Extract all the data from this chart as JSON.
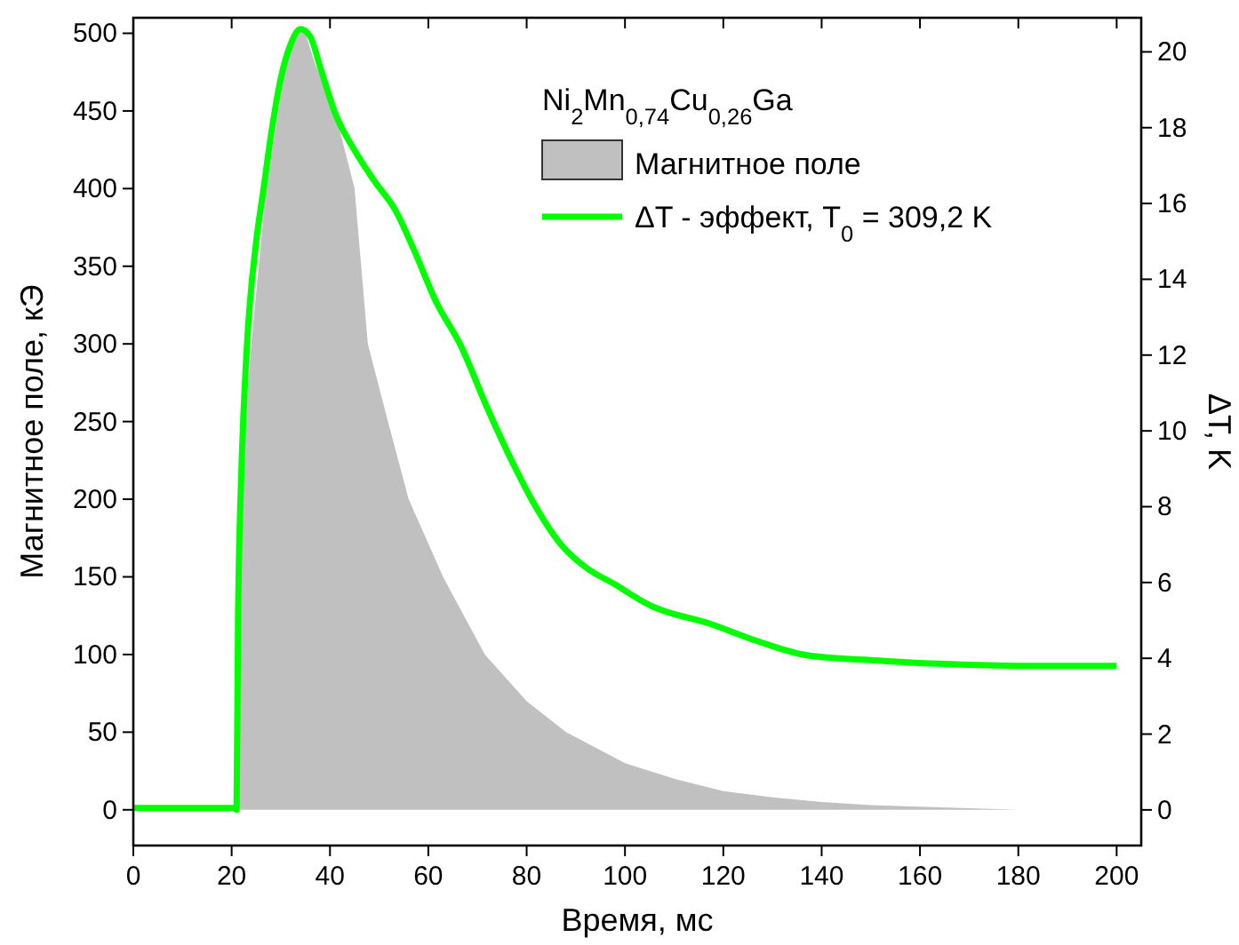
{
  "chart_data": {
    "type": "line",
    "xlabel": "Время, мс",
    "ylabel": "Магнитное поле, кЭ",
    "y2label": "ΔT, K",
    "legend_title": "Ni$_{2}$Mn$_{0,74}$Cu$_{0,26}$Ga",
    "legend": "top right",
    "grid": false,
    "xlim": [
      0,
      205
    ],
    "xticks": [
      0,
      20,
      40,
      60,
      80,
      100,
      120,
      140,
      160,
      180,
      200
    ],
    "ylim": [
      -23,
      510
    ],
    "yticks": [
      0,
      50,
      100,
      150,
      200,
      250,
      300,
      350,
      400,
      450,
      500
    ],
    "y2lim": [
      -0.94,
      20.9
    ],
    "y2ticks": [
      0,
      2,
      4,
      6,
      8,
      10,
      12,
      14,
      16,
      18,
      20
    ],
    "series": [
      {
        "name": "Магнитное поле",
        "type": "area",
        "color": "#c0c0c0",
        "x": [
          21,
          21.5,
          22,
          24,
          27,
          31,
          33,
          34.5,
          37,
          41,
          45,
          47.7,
          51.8,
          56,
          63,
          71.5,
          80,
          88,
          100,
          110,
          120,
          130,
          140,
          150,
          160,
          170,
          180,
          190,
          200
        ],
        "values": [
          0,
          150,
          220,
          300,
          400,
          480,
          500,
          505,
          480,
          450,
          400,
          300,
          250,
          200,
          150,
          100,
          70,
          50,
          30,
          20,
          12,
          8,
          5,
          3,
          2,
          1,
          0,
          0,
          0
        ]
      },
      {
        "name": "ΔT - эффект, T$_{0}$ = 309,2 K",
        "axis": "y2",
        "color": "#00ff00",
        "x": [
          0,
          10,
          20.5,
          21,
          21.3,
          22,
          23,
          25,
          26.4,
          28,
          30,
          32,
          34,
          36,
          38,
          41,
          45,
          49,
          53.4,
          57,
          61.6,
          66.6,
          72,
          77,
          81.4,
          87,
          92,
          97.8,
          105,
          117.5,
          127,
          137,
          150,
          165,
          180,
          200
        ],
        "values": [
          0.05,
          0.05,
          0.05,
          0,
          5,
          9,
          12,
          15,
          16.3,
          17.8,
          19.3,
          20.2,
          20.6,
          20.4,
          19.6,
          18.4,
          17.4,
          16.6,
          15.8,
          14.8,
          13.4,
          12.25,
          10.6,
          9.2,
          8.1,
          7,
          6.4,
          5.96,
          5.4,
          4.9,
          4.45,
          4.08,
          3.95,
          3.85,
          3.8,
          3.8
        ]
      }
    ]
  }
}
